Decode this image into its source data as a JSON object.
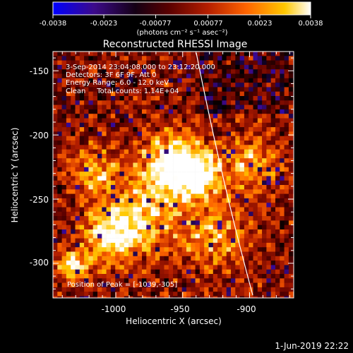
{
  "colorbar": {
    "tick_labels": [
      "-0.0038",
      "-0.0023",
      "-0.00077",
      "0.00077",
      "0.0023",
      "0.0038"
    ],
    "tick_values": [
      -0.0038,
      -0.0023,
      -0.00077,
      0.00077,
      0.0023,
      0.0038
    ],
    "range": [
      -0.0038,
      0.0038
    ],
    "units_label": "(photons cm⁻² s⁻¹ asec⁻²)"
  },
  "chart_data": {
    "type": "heatmap",
    "title": "Reconstructed RHESSI Image",
    "xlabel": "Heliocentric X (arcsec)",
    "ylabel": "Heliocentric Y (arcsec)",
    "xlim": [
      -1047,
      -867
    ],
    "ylim": [
      -327,
      -135
    ],
    "x_tick_labels": [
      "-1000",
      "-950",
      "-900"
    ],
    "x_tick_values": [
      -1000,
      -950,
      -900
    ],
    "y_tick_labels": [
      "-150",
      "-200",
      "-250",
      "-300"
    ],
    "y_tick_values": [
      -150,
      -200,
      -250,
      -300
    ],
    "annotations": [
      "3-Sep-2014 23:04:08.000 to 23:12:20.000",
      "Detectors: 3F 6F 9F, Att 0",
      "Energy Range: 6.0 - 12.0 keV",
      "Clean     Total counts: 1.14E+04"
    ],
    "peak_label": "Position of Peak = [-1039,-305]",
    "peak_position": [
      -1039,
      -305
    ],
    "limb_color": "#ffffff",
    "colormap": [
      "#0000ff",
      "#3c0a8a",
      "#000000",
      "#5a0000",
      "#b41e00",
      "#ff6400",
      "#ffc800",
      "#ffffff"
    ]
  },
  "footer": {
    "timestamp": "1-Jun-2019 22:22"
  }
}
